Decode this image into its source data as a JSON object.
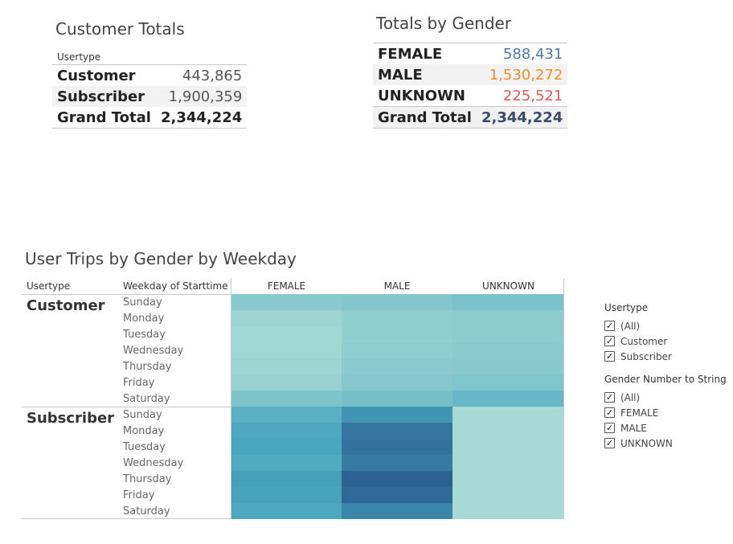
{
  "customer_totals": {
    "title": "Customer Totals",
    "column_header": "Usertype",
    "rows": [
      {
        "label": "Customer",
        "value": "443,865"
      },
      {
        "label": "Subscriber",
        "value": "1,900,359"
      },
      {
        "label": "Grand Total",
        "value": "2,344,224"
      }
    ]
  },
  "gender_totals": {
    "title": "Totals by Gender",
    "rows": [
      {
        "label": "FEMALE",
        "value": "588,431",
        "color": "#4e79a7"
      },
      {
        "label": "MALE",
        "value": "1,530,272",
        "color": "#f28e2b"
      },
      {
        "label": "UNKNOWN",
        "value": "225,521",
        "color": "#e15759"
      },
      {
        "label": "Grand Total",
        "value": "2,344,224",
        "color": "#3b4a6b"
      }
    ]
  },
  "heatmap": {
    "title": "User Trips by Gender by Weekday",
    "row_header_1": "Usertype",
    "row_header_2": "Weekday of Starttime",
    "columns": [
      "FEMALE",
      "MALE",
      "UNKNOWN"
    ],
    "groups": [
      {
        "name": "Customer",
        "days": [
          "Sunday",
          "Monday",
          "Tuesday",
          "Wednesday",
          "Thursday",
          "Friday",
          "Saturday"
        ]
      },
      {
        "name": "Subscriber",
        "days": [
          "Sunday",
          "Monday",
          "Tuesday",
          "Wednesday",
          "Thursday",
          "Friday",
          "Saturday"
        ]
      }
    ]
  },
  "chart_data": {
    "type": "heatmap",
    "title": "User Trips by Gender by Weekday",
    "xlabel": "",
    "ylabel": "Usertype / Weekday of Starttime",
    "columns": [
      "FEMALE",
      "MALE",
      "UNKNOWN"
    ],
    "rows": [
      "Customer|Sunday",
      "Customer|Monday",
      "Customer|Tuesday",
      "Customer|Wednesday",
      "Customer|Thursday",
      "Customer|Friday",
      "Customer|Saturday",
      "Subscriber|Sunday",
      "Subscriber|Monday",
      "Subscriber|Tuesday",
      "Subscriber|Wednesday",
      "Subscriber|Thursday",
      "Subscriber|Friday",
      "Subscriber|Saturday"
    ],
    "values": [
      [
        0.22,
        0.24,
        0.28
      ],
      [
        0.12,
        0.18,
        0.2
      ],
      [
        0.11,
        0.18,
        0.2
      ],
      [
        0.11,
        0.19,
        0.21
      ],
      [
        0.12,
        0.21,
        0.22
      ],
      [
        0.14,
        0.23,
        0.25
      ],
      [
        0.26,
        0.3,
        0.36
      ],
      [
        0.42,
        0.62,
        0.08
      ],
      [
        0.48,
        0.82,
        0.08
      ],
      [
        0.5,
        0.84,
        0.08
      ],
      [
        0.46,
        0.78,
        0.08
      ],
      [
        0.54,
        0.95,
        0.08
      ],
      [
        0.52,
        0.9,
        0.08
      ],
      [
        0.48,
        0.72,
        0.08
      ]
    ],
    "value_scale": "relative intensity 0-1 (no labels shown)",
    "color_low": "#b9e4d9",
    "color_high": "#2a5a8b"
  },
  "filters": {
    "usertype": {
      "title": "Usertype",
      "options": [
        "(All)",
        "Customer",
        "Subscriber"
      ]
    },
    "gender": {
      "title": "Gender Number to String",
      "options": [
        "(All)",
        "FEMALE",
        "MALE",
        "UNKNOWN"
      ]
    },
    "check_glyph": "✓"
  }
}
